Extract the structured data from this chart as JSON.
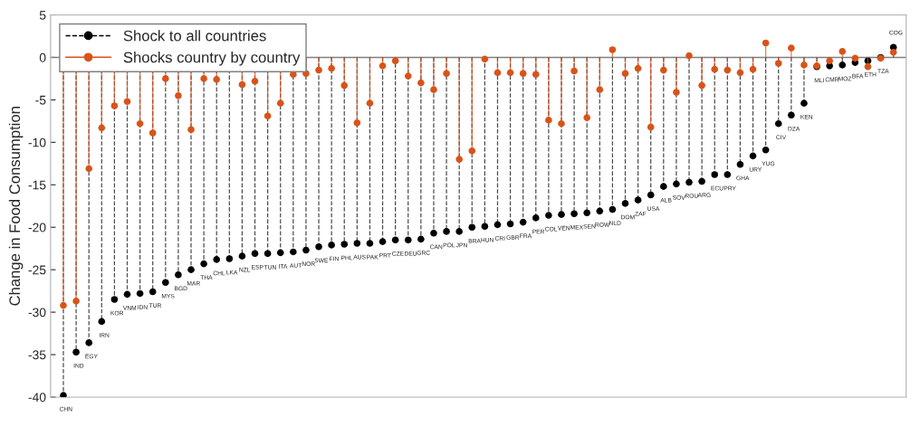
{
  "chart_data": {
    "type": "lollipop",
    "ylabel": "Change in Food Consumption",
    "categories": [
      "CHN",
      "IND",
      "EGY",
      "IRN",
      "KOR",
      "VNM",
      "IDN",
      "TUR",
      "MYS",
      "BGD",
      "MAR",
      "THA",
      "CHL",
      "LKA",
      "NZL",
      "ESP",
      "TUN",
      "ITA",
      "AUT",
      "NOR",
      "SWE",
      "FIN",
      "PHL",
      "AUS",
      "PAK",
      "PRT",
      "CZE",
      "DEU",
      "GRC",
      "CAN",
      "POL",
      "JPN",
      "BRA",
      "HUN",
      "CRI",
      "GBR",
      "FRA",
      "PER",
      "COL",
      "VEN",
      "MEX",
      "SEN",
      "ROW",
      "NLD",
      "DOM",
      "ZAF",
      "USA",
      "ALB",
      "SOV",
      "ROU",
      "ARG",
      "ECU",
      "PRY",
      "GHA",
      "URY",
      "YUG",
      "CIV",
      "DZA",
      "KEN",
      "MLI",
      "CMR",
      "MOZ",
      "BFA",
      "ETH",
      "TZA",
      "COG"
    ],
    "series": [
      {
        "name": "Shock to all countries",
        "color": "#000000",
        "line_style": "dashed",
        "values": [
          -39.8,
          -34.7,
          -33.6,
          -31.1,
          -28.5,
          -27.9,
          -27.8,
          -27.6,
          -26.5,
          -25.6,
          -25.0,
          -24.3,
          -23.8,
          -23.7,
          -23.4,
          -23.1,
          -23.1,
          -23.0,
          -22.9,
          -22.7,
          -22.3,
          -22.1,
          -22.0,
          -21.9,
          -21.9,
          -21.7,
          -21.5,
          -21.5,
          -21.4,
          -20.7,
          -20.5,
          -20.5,
          -20.0,
          -19.9,
          -19.7,
          -19.6,
          -19.4,
          -18.9,
          -18.6,
          -18.5,
          -18.4,
          -18.3,
          -18.1,
          -17.9,
          -17.2,
          -16.8,
          -16.2,
          -15.2,
          -14.9,
          -14.7,
          -14.6,
          -13.8,
          -13.8,
          -12.6,
          -11.6,
          -10.9,
          -7.8,
          -6.8,
          -5.4,
          -1.1,
          -1.0,
          -0.9,
          -0.6,
          -0.4,
          0.0,
          1.2
        ]
      },
      {
        "name": "Shocks country by country",
        "color": "#d95319",
        "line_style": "solid",
        "values": [
          -29.2,
          -28.7,
          -13.1,
          -8.3,
          -5.7,
          -5.2,
          -7.8,
          -8.9,
          -2.5,
          -4.5,
          -8.5,
          -2.5,
          -2.6,
          null,
          -3.2,
          -2.8,
          -6.9,
          -5.4,
          -2.0,
          -1.9,
          -1.5,
          -1.3,
          -3.3,
          -7.7,
          -5.4,
          -1.0,
          -0.4,
          -2.2,
          -3.0,
          -3.8,
          -1.9,
          -12.0,
          -11.0,
          -0.2,
          -1.8,
          -1.8,
          -1.9,
          -2.0,
          -7.4,
          -7.8,
          -1.6,
          -7.1,
          -3.8,
          0.9,
          -1.9,
          -1.3,
          -8.2,
          -1.5,
          -4.1,
          0.2,
          -3.3,
          -1.4,
          -1.5,
          -1.8,
          -1.4,
          1.7,
          -0.7,
          1.1,
          -0.9,
          -1.0,
          -0.4,
          0.7,
          -0.1,
          -1.1,
          -0.1,
          0.6
        ]
      }
    ],
    "ylim": [
      -40,
      5
    ],
    "yticks": [
      -40,
      -35,
      -30,
      -25,
      -20,
      -15,
      -10,
      -5,
      0,
      5
    ],
    "tick_labels": "y",
    "ref_lines": [
      {
        "axis": "y",
        "value": 0,
        "color": "#808080"
      }
    ],
    "marker": "circle",
    "legend": "top left",
    "grid": false
  }
}
